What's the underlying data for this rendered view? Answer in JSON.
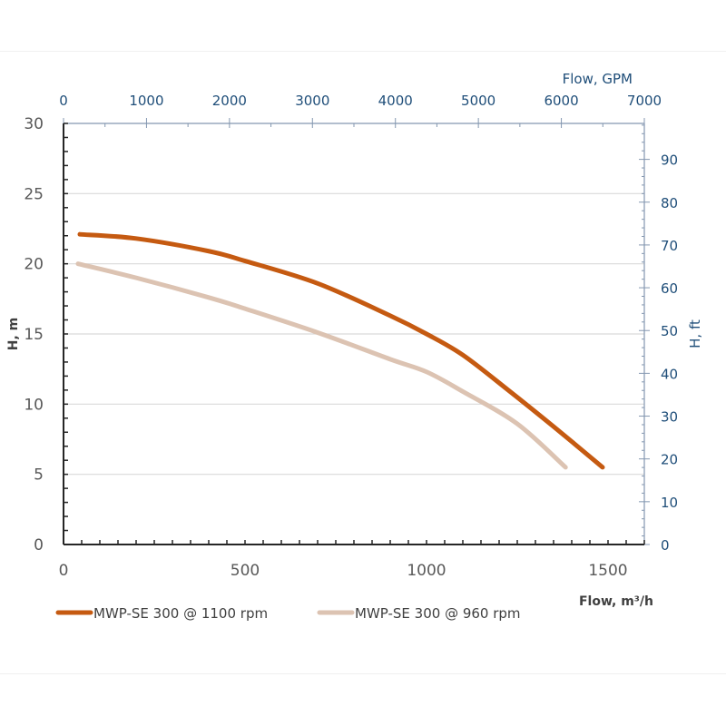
{
  "chart_data": {
    "type": "line",
    "title": "",
    "xlabel": "Flow, m³/h",
    "ylabel": "H, m",
    "x2label": "Flow, GPM",
    "y2label": "H, ft",
    "xlim": [
      0,
      1600
    ],
    "ylim": [
      0,
      30
    ],
    "x2lim": [
      0,
      7000
    ],
    "y2lim": [
      0,
      98.4
    ],
    "xticks": [
      "0",
      "500",
      "1000",
      "1500"
    ],
    "xtick_values": [
      0,
      500,
      1000,
      1500
    ],
    "yticks": [
      "0",
      "5",
      "10",
      "15",
      "20",
      "25",
      "30"
    ],
    "ytick_values": [
      0,
      5,
      10,
      15,
      20,
      25,
      30
    ],
    "x2ticks": [
      "0",
      "1000",
      "2000",
      "3000",
      "4000",
      "5000",
      "6000",
      "7000"
    ],
    "x2tick_values": [
      0,
      1000,
      2000,
      3000,
      4000,
      5000,
      6000,
      7000
    ],
    "y2ticks": [
      "0",
      "10",
      "20",
      "30",
      "40",
      "50",
      "60",
      "70",
      "80",
      "90"
    ],
    "y2tick_values": [
      0,
      10,
      20,
      30,
      40,
      50,
      60,
      70,
      80,
      90
    ],
    "grid": "horizontal",
    "legend_position": "bottom",
    "series": [
      {
        "name": "MWP-SE 300 @ 1100 rpm",
        "color": "#c55a11",
        "x": [
          45,
          200,
          400,
          500,
          700,
          900,
          1000,
          1100,
          1225,
          1350,
          1485
        ],
        "y": [
          22.1,
          21.8,
          20.9,
          20.2,
          18.6,
          16.3,
          15.0,
          13.5,
          11.0,
          8.4,
          5.5
        ]
      },
      {
        "name": "MWP-SE 300 @ 960 rpm",
        "color": "#dcc3b2",
        "x": [
          40,
          200,
          400,
          500,
          700,
          900,
          1000,
          1100,
          1250,
          1383
        ],
        "y": [
          20.0,
          19.0,
          17.6,
          16.8,
          15.1,
          13.2,
          12.3,
          10.9,
          8.6,
          5.5
        ]
      }
    ]
  }
}
